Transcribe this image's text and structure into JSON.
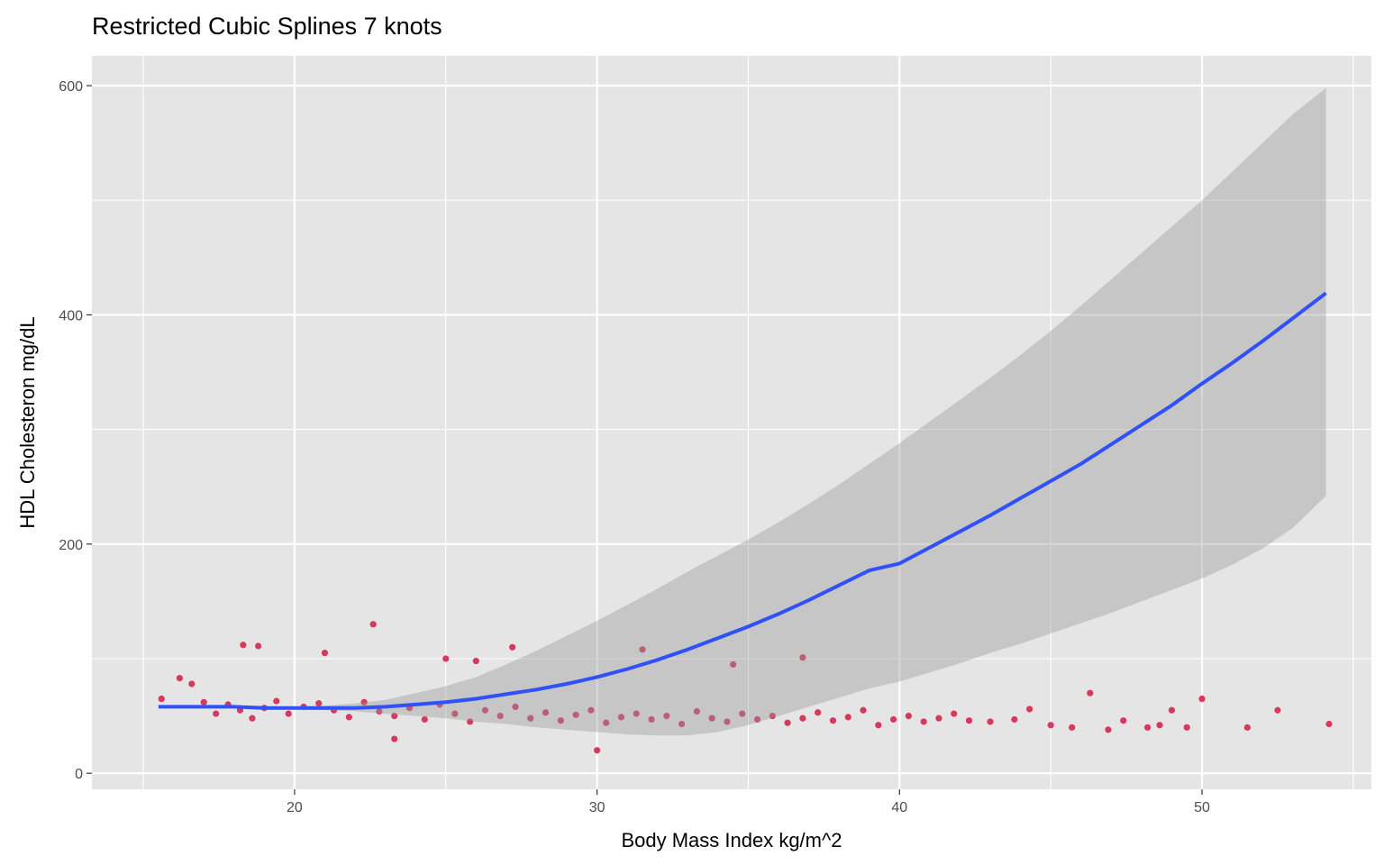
{
  "chart_data": {
    "type": "scatter",
    "title": "Restricted Cubic Splines 7 knots",
    "xlabel": "Body Mass Index kg/m^2",
    "ylabel": "HDL Cholesteron mg/dL",
    "xlim": [
      13.3,
      55.6
    ],
    "ylim": [
      -14,
      626
    ],
    "x_ticks": [
      20,
      30,
      40,
      50
    ],
    "x_tick_labels": [
      "20",
      "30",
      "40",
      "50"
    ],
    "y_ticks": [
      0,
      200,
      400,
      600
    ],
    "y_tick_labels": [
      "0",
      "200",
      "400",
      "600"
    ],
    "grid": true,
    "legend": "none",
    "colors": {
      "panel": "#e5e5e5",
      "grid": "#ffffff",
      "points": "#d6395d",
      "fit_line": "#3050f8",
      "ribbon": "#bcbcbc"
    },
    "series": [
      {
        "type": "scatter",
        "description": "observations (dense cloud between BMI 17-42, HDL 25-90, sparse tail to BMI 54)",
        "x": [
          15.6,
          16.2,
          16.6,
          17.0,
          17.4,
          17.8,
          18.2,
          18.6,
          19.0,
          19.4,
          19.8,
          20.3,
          20.8,
          21.3,
          21.8,
          22.3,
          22.8,
          23.3,
          23.8,
          24.3,
          24.8,
          25.3,
          25.8,
          26.3,
          26.8,
          27.3,
          27.8,
          28.3,
          28.8,
          29.3,
          29.8,
          30.3,
          30.8,
          31.3,
          31.8,
          32.3,
          32.8,
          33.3,
          33.8,
          34.3,
          34.8,
          35.3,
          35.8,
          36.3,
          36.8,
          37.3,
          37.8,
          38.3,
          38.8,
          39.3,
          39.8,
          40.3,
          40.8,
          41.3,
          41.8,
          42.3,
          43.0,
          43.8,
          44.3,
          45.0,
          45.7,
          46.3,
          46.9,
          47.4,
          48.2,
          48.6,
          49.0,
          49.5,
          50.0,
          51.5,
          52.5,
          54.2,
          22.6,
          18.3,
          18.8,
          21.0,
          27.2,
          31.5,
          36.8,
          34.5,
          30.0,
          23.3,
          25.0,
          26.0
        ],
        "y": [
          65,
          83,
          78,
          62,
          52,
          60,
          55,
          48,
          57,
          63,
          52,
          58,
          61,
          55,
          49,
          62,
          54,
          50,
          57,
          47,
          60,
          52,
          45,
          55,
          50,
          58,
          48,
          53,
          46,
          51,
          55,
          44,
          49,
          52,
          47,
          50,
          43,
          54,
          48,
          45,
          52,
          47,
          50,
          44,
          48,
          53,
          46,
          49,
          55,
          42,
          47,
          50,
          45,
          48,
          52,
          46,
          45,
          47,
          56,
          42,
          40,
          70,
          38,
          46,
          40,
          42,
          55,
          40,
          65,
          40,
          55,
          43,
          130,
          112,
          111,
          105,
          110,
          108,
          101,
          95,
          20,
          30,
          100,
          98
        ]
      },
      {
        "type": "line",
        "name": "",
        "description": "restricted cubic spline fit",
        "x": [
          15.5,
          17,
          18,
          19,
          20,
          21,
          22,
          23,
          24,
          25,
          26,
          27,
          28,
          29,
          30,
          31,
          32,
          33,
          34,
          35,
          36,
          37,
          38,
          39,
          40,
          41,
          42,
          43,
          44,
          45,
          46,
          47,
          48,
          49,
          50,
          51,
          52,
          53,
          54.1
        ],
        "y": [
          58,
          58,
          58,
          57,
          57,
          57,
          57,
          58,
          60,
          62,
          65,
          69,
          73,
          78,
          84,
          91,
          99,
          108,
          118,
          128,
          139,
          151,
          164,
          177,
          183,
          197,
          211,
          225,
          240,
          255,
          270,
          287,
          304,
          321,
          340,
          358,
          377,
          397,
          419
        ]
      },
      {
        "type": "area",
        "description": "confidence ribbon",
        "x": [
          15.5,
          17,
          18,
          19,
          20,
          21,
          22,
          23,
          24,
          25,
          26,
          27,
          28,
          29,
          30,
          31,
          32,
          33,
          34,
          35,
          36,
          37,
          38,
          39,
          40,
          41,
          42,
          43,
          44,
          45,
          46,
          47,
          48,
          49,
          50,
          51,
          52,
          53,
          54.1
        ],
        "lower": [
          58,
          58,
          58,
          57,
          56,
          55,
          54,
          52,
          50,
          48,
          45,
          43,
          40,
          38,
          36,
          34,
          33,
          33,
          36,
          42,
          50,
          58,
          66,
          74,
          80,
          88,
          96,
          105,
          113,
          122,
          131,
          140,
          150,
          160,
          170,
          182,
          196,
          214,
          242
        ],
        "upper": [
          58,
          58,
          58,
          57,
          58,
          59,
          61,
          64,
          70,
          76,
          84,
          95,
          107,
          120,
          133,
          147,
          161,
          176,
          190,
          204,
          219,
          235,
          252,
          270,
          288,
          307,
          326,
          345,
          365,
          386,
          408,
          431,
          454,
          477,
          500,
          525,
          550,
          575,
          598
        ]
      }
    ]
  }
}
